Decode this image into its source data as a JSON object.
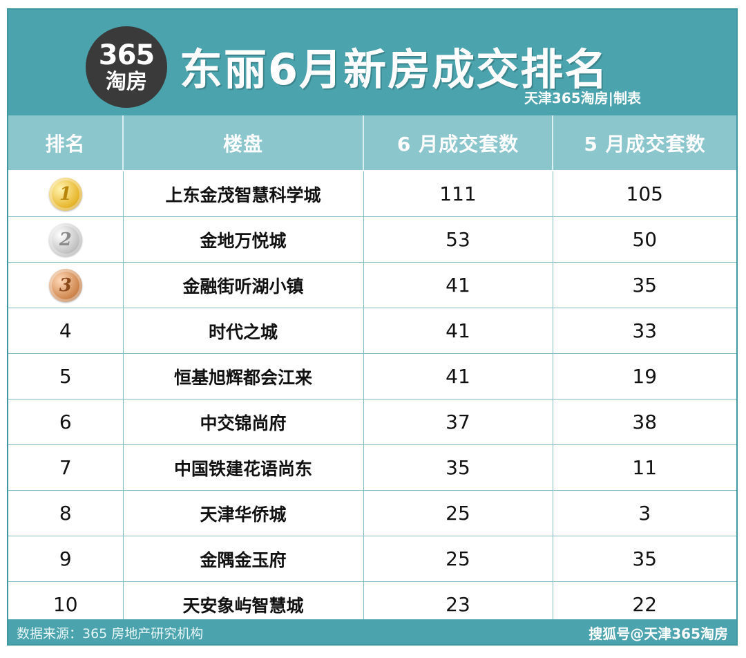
{
  "header": {
    "logo_top": "365",
    "logo_bottom": "淘房",
    "title": "东丽6月新房成交排名",
    "maker": "天津365淘房|制表"
  },
  "table": {
    "columns": [
      "排名",
      "楼盘",
      "6 月成交套数",
      "5 月成交套数"
    ],
    "rows": [
      {
        "rank": "1",
        "medal": "gold",
        "name": "上东金茂智慧科学城",
        "june": "111",
        "may": "105"
      },
      {
        "rank": "2",
        "medal": "silver",
        "name": "金地万悦城",
        "june": "53",
        "may": "50"
      },
      {
        "rank": "3",
        "medal": "bronze",
        "name": "金融街听湖小镇",
        "june": "41",
        "may": "35"
      },
      {
        "rank": "4",
        "medal": "",
        "name": "时代之城",
        "june": "41",
        "may": "33"
      },
      {
        "rank": "5",
        "medal": "",
        "name": "恒基旭辉都会江来",
        "june": "41",
        "may": "19"
      },
      {
        "rank": "6",
        "medal": "",
        "name": "中交锦尚府",
        "june": "37",
        "may": "38"
      },
      {
        "rank": "7",
        "medal": "",
        "name": "中国铁建花语尚东",
        "june": "35",
        "may": "11"
      },
      {
        "rank": "8",
        "medal": "",
        "name": "天津华侨城",
        "june": "25",
        "may": "3"
      },
      {
        "rank": "9",
        "medal": "",
        "name": "金隅金玉府",
        "june": "25",
        "may": "35"
      },
      {
        "rank": "10",
        "medal": "",
        "name": "天安象屿智慧城",
        "june": "23",
        "may": "22"
      }
    ]
  },
  "footer": {
    "source": "数据来源：365 房地产研究机构",
    "watermark": "搜狐号@天津365淘房"
  }
}
